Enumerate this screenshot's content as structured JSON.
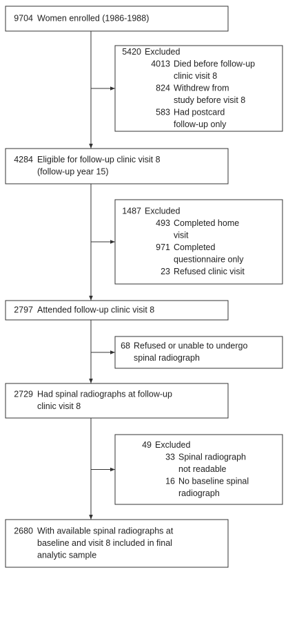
{
  "main_boxes": [
    {
      "number": "9704",
      "lines": [
        "Women enrolled (1986-1988)"
      ]
    },
    {
      "number": "4284",
      "lines": [
        "Eligible for follow-up clinic visit 8",
        "(follow-up year 15)"
      ]
    },
    {
      "number": "2797",
      "lines": [
        "Attended follow-up clinic visit 8"
      ]
    },
    {
      "number": "2729",
      "lines": [
        "Had spinal radiographs at follow-up",
        "clinic visit 8"
      ]
    },
    {
      "number": "2680",
      "lines": [
        "With available spinal radiographs at",
        "baseline and visit 8 included in final",
        "analytic sample"
      ]
    }
  ],
  "exclusion_boxes": [
    {
      "number": "5420",
      "lines": [
        "Excluded"
      ],
      "items": [
        {
          "number": "4013",
          "lines": [
            "Died before follow-up",
            "clinic visit 8"
          ]
        },
        {
          "number": "824",
          "lines": [
            "Withdrew from",
            "study before visit 8"
          ]
        },
        {
          "number": "583",
          "lines": [
            "Had postcard",
            "follow-up only"
          ]
        }
      ]
    },
    {
      "number": "1487",
      "lines": [
        "Excluded"
      ],
      "items": [
        {
          "number": "493",
          "lines": [
            "Completed home",
            "visit"
          ]
        },
        {
          "number": "971",
          "lines": [
            "Completed",
            "questionnaire only"
          ]
        },
        {
          "number": "23",
          "lines": [
            "Refused clinic visit"
          ]
        }
      ]
    },
    {
      "number": "68",
      "lines": [
        "Refused or unable to undergo",
        "spinal radiograph"
      ],
      "items": []
    },
    {
      "number": "49",
      "lines": [
        "Excluded"
      ],
      "items": [
        {
          "number": "33",
          "lines": [
            "Spinal radiograph",
            "not readable"
          ]
        },
        {
          "number": "16",
          "lines": [
            "No baseline spinal",
            "radiograph"
          ]
        }
      ]
    }
  ]
}
